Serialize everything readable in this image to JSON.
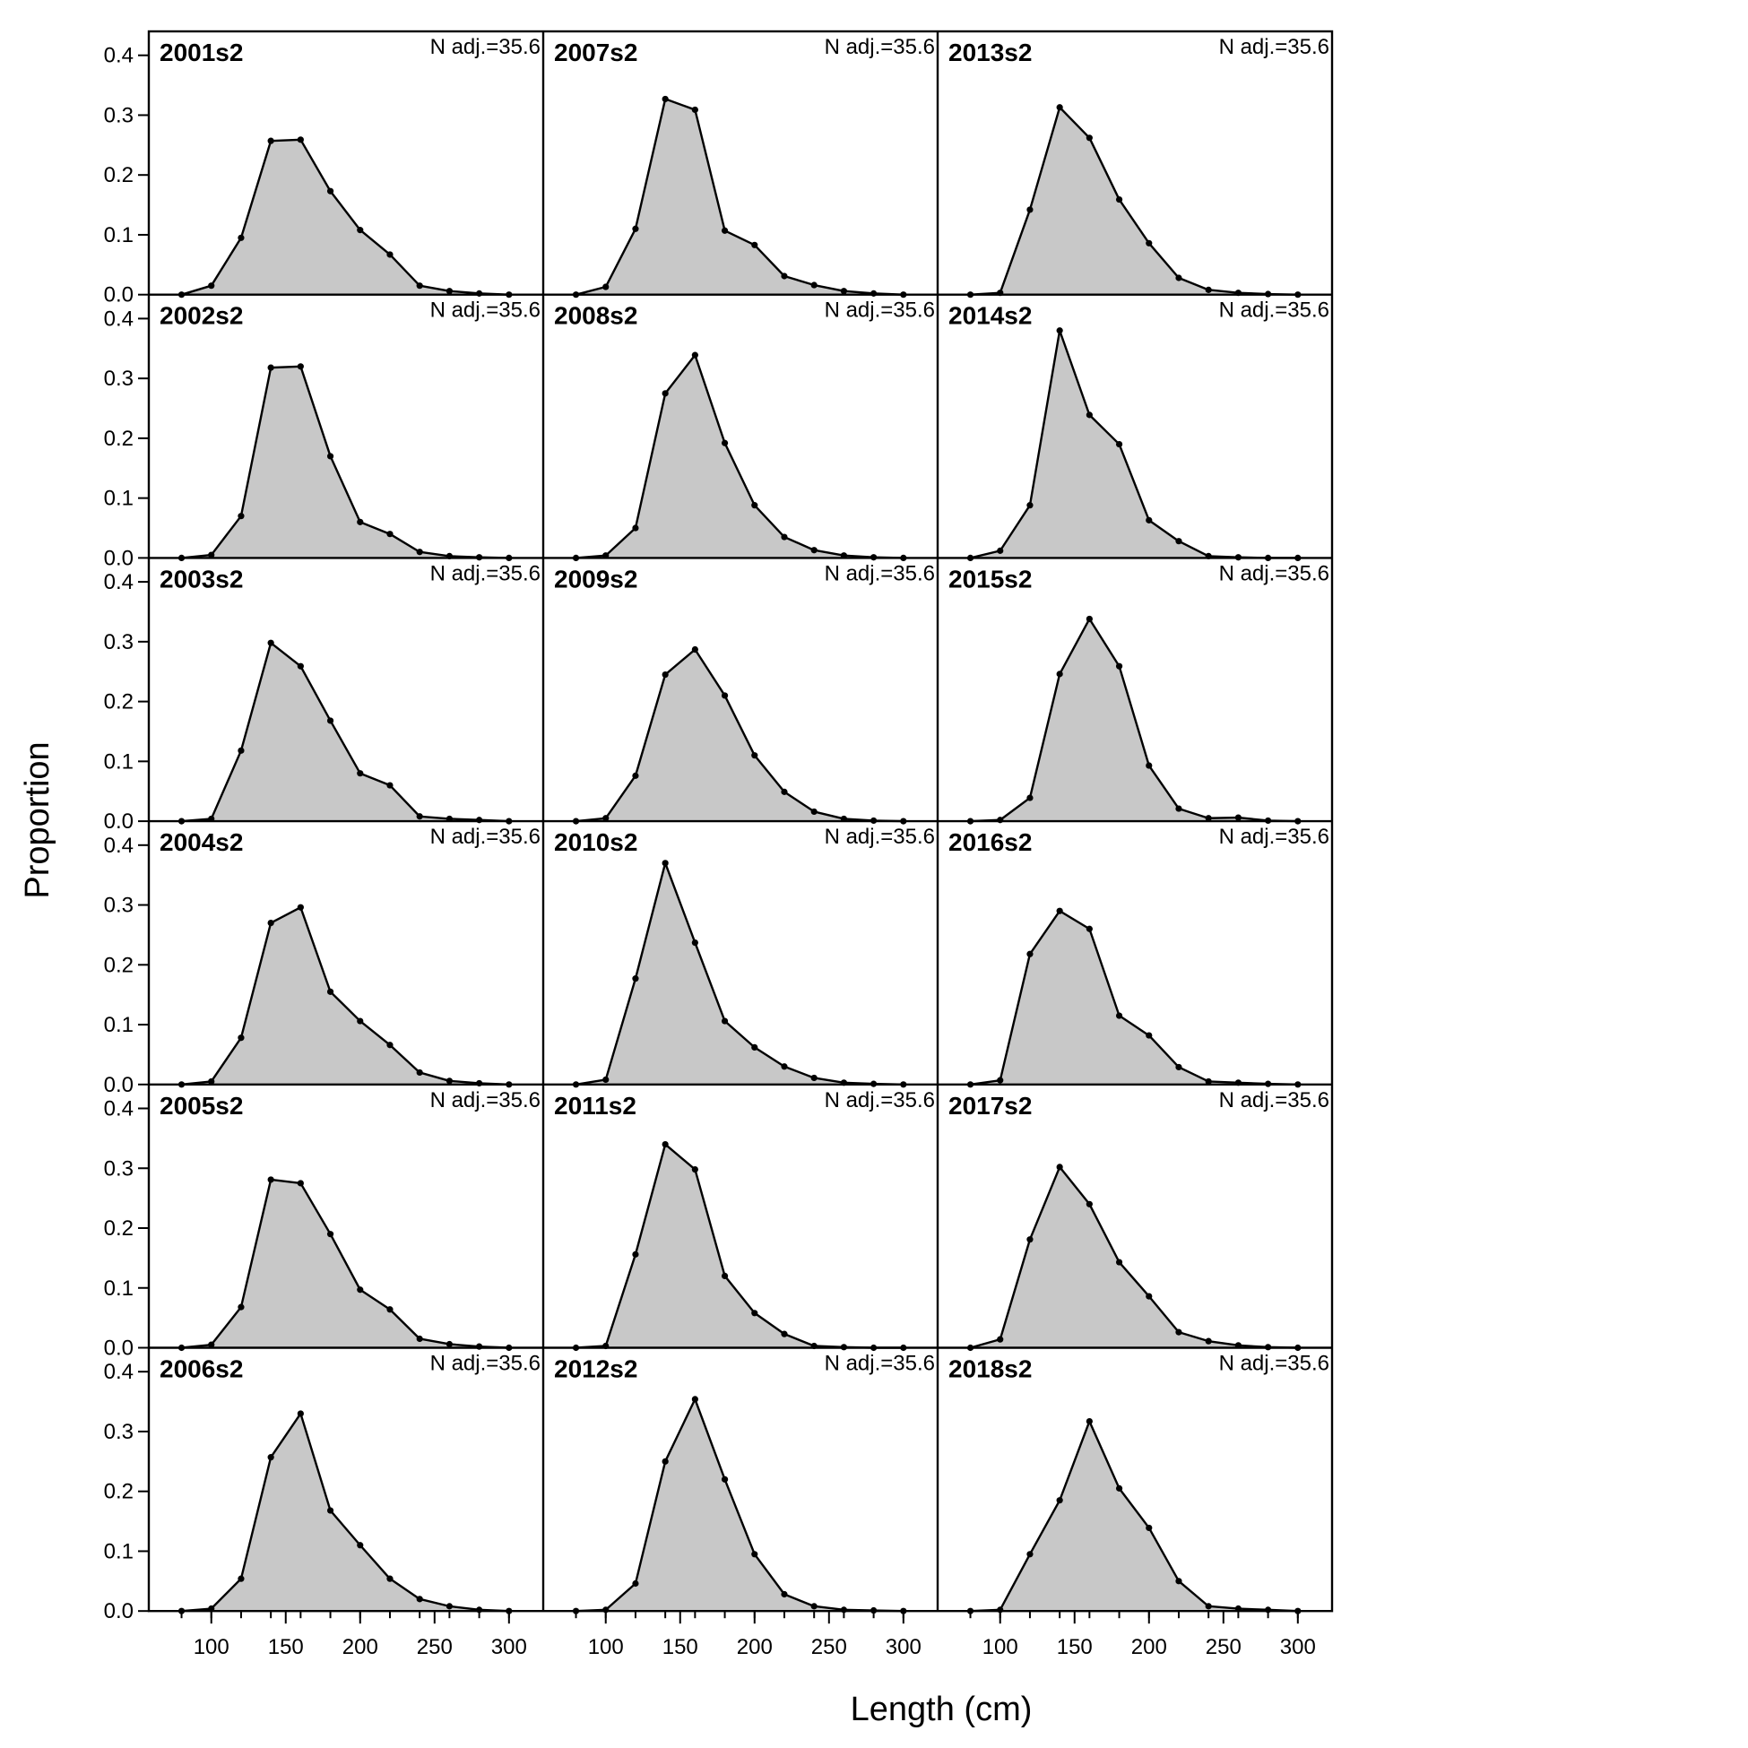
{
  "chart_data": {
    "type": "area",
    "xlabel": "Length (cm)",
    "ylabel": "Proportion",
    "xlim": [
      58,
      323
    ],
    "ylim": [
      0,
      0.44
    ],
    "x_ticks": [
      100,
      150,
      200,
      250,
      300
    ],
    "y_ticks": [
      0.0,
      0.1,
      0.2,
      0.3,
      0.4
    ],
    "y_tick_labels": [
      "0.0",
      "0.1",
      "0.2",
      "0.3",
      "0.4"
    ],
    "grid": false,
    "colors": {
      "fill": "#c8c8c8",
      "line": "#000000",
      "frame": "#000000"
    },
    "x": [
      80,
      100,
      120,
      140,
      160,
      180,
      200,
      220,
      240,
      260,
      280,
      300
    ],
    "columns": 3,
    "rows": 6,
    "panels": [
      {
        "label": "2001s2",
        "n_label": "N adj.=35.6",
        "values": [
          0,
          0.015,
          0.095,
          0.257,
          0.259,
          0.173,
          0.108,
          0.067,
          0.015,
          0.006,
          0.002,
          0
        ]
      },
      {
        "label": "2002s2",
        "n_label": "N adj.=35.6",
        "values": [
          0,
          0.005,
          0.07,
          0.318,
          0.32,
          0.17,
          0.06,
          0.04,
          0.01,
          0.003,
          0.001,
          0
        ]
      },
      {
        "label": "2003s2",
        "n_label": "N adj.=35.6",
        "values": [
          0,
          0.004,
          0.118,
          0.298,
          0.259,
          0.168,
          0.08,
          0.06,
          0.008,
          0.004,
          0.002,
          0
        ]
      },
      {
        "label": "2004s2",
        "n_label": "N adj.=35.6",
        "values": [
          0,
          0.005,
          0.078,
          0.27,
          0.296,
          0.155,
          0.106,
          0.066,
          0.02,
          0.006,
          0.002,
          0
        ]
      },
      {
        "label": "2005s2",
        "n_label": "N adj.=35.6",
        "values": [
          0,
          0.005,
          0.068,
          0.281,
          0.275,
          0.19,
          0.097,
          0.064,
          0.015,
          0.006,
          0.002,
          0
        ]
      },
      {
        "label": "2006s2",
        "n_label": "N adj.=35.6",
        "values": [
          0,
          0.004,
          0.054,
          0.257,
          0.33,
          0.168,
          0.11,
          0.054,
          0.02,
          0.008,
          0.002,
          0
        ]
      },
      {
        "label": "2007s2",
        "n_label": "N adj.=35.6",
        "values": [
          0,
          0.013,
          0.11,
          0.327,
          0.309,
          0.107,
          0.083,
          0.031,
          0.016,
          0.006,
          0.002,
          0
        ]
      },
      {
        "label": "2008s2",
        "n_label": "N adj.=35.6",
        "values": [
          0,
          0.004,
          0.05,
          0.275,
          0.339,
          0.192,
          0.088,
          0.035,
          0.013,
          0.004,
          0.001,
          0
        ]
      },
      {
        "label": "2009s2",
        "n_label": "N adj.=35.6",
        "values": [
          0,
          0.005,
          0.076,
          0.245,
          0.287,
          0.21,
          0.11,
          0.049,
          0.016,
          0.004,
          0.001,
          0
        ]
      },
      {
        "label": "2010s2",
        "n_label": "N adj.=35.6",
        "values": [
          0,
          0.008,
          0.177,
          0.37,
          0.237,
          0.106,
          0.062,
          0.03,
          0.011,
          0.003,
          0.001,
          0
        ]
      },
      {
        "label": "2011s2",
        "n_label": "N adj.=35.6",
        "values": [
          0,
          0.003,
          0.156,
          0.34,
          0.298,
          0.12,
          0.058,
          0.023,
          0.003,
          0.001,
          0,
          0
        ]
      },
      {
        "label": "2012s2",
        "n_label": "N adj.=35.6",
        "values": [
          0,
          0.002,
          0.046,
          0.25,
          0.354,
          0.22,
          0.095,
          0.028,
          0.008,
          0.002,
          0.001,
          0
        ]
      },
      {
        "label": "2013s2",
        "n_label": "N adj.=35.6",
        "values": [
          0,
          0.003,
          0.142,
          0.313,
          0.262,
          0.159,
          0.086,
          0.028,
          0.008,
          0.003,
          0.001,
          0
        ]
      },
      {
        "label": "2014s2",
        "n_label": "N adj.=35.6",
        "values": [
          0,
          0.012,
          0.088,
          0.38,
          0.239,
          0.19,
          0.063,
          0.028,
          0.003,
          0.001,
          0,
          0
        ]
      },
      {
        "label": "2015s2",
        "n_label": "N adj.=35.6",
        "values": [
          0,
          0.002,
          0.039,
          0.246,
          0.338,
          0.259,
          0.093,
          0.021,
          0.005,
          0.006,
          0.001,
          0
        ]
      },
      {
        "label": "2016s2",
        "n_label": "N adj.=35.6",
        "values": [
          0,
          0.007,
          0.218,
          0.29,
          0.26,
          0.115,
          0.082,
          0.029,
          0.005,
          0.003,
          0.001,
          0
        ]
      },
      {
        "label": "2017s2",
        "n_label": "N adj.=35.6",
        "values": [
          0,
          0.014,
          0.181,
          0.302,
          0.24,
          0.143,
          0.086,
          0.026,
          0.011,
          0.004,
          0.001,
          0
        ]
      },
      {
        "label": "2018s2",
        "n_label": "N adj.=35.6",
        "values": [
          0,
          0.002,
          0.095,
          0.185,
          0.317,
          0.205,
          0.139,
          0.05,
          0.008,
          0.004,
          0.002,
          0
        ]
      }
    ]
  }
}
